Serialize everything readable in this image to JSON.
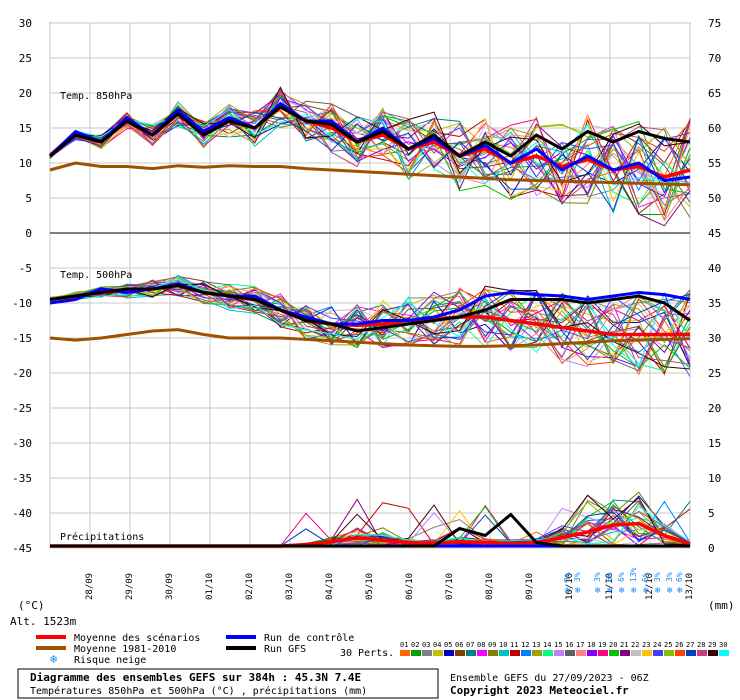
{
  "chart_data": {
    "type": "line",
    "title": "Diagramme des ensembles GEFS sur 384h : 45.3N 7.4E",
    "subtitle": "Températures 850hPa et 500hPa (°C) , précipitations (mm)",
    "ensemble_info": "Ensemble GEFS du 27/09/2023 - 06Z",
    "copyright": "Copyright 2023 Meteociel.fr",
    "altitude": "Alt. 1523m",
    "left_unit": "(°C)",
    "right_unit": "(mm)",
    "left_ticks": [
      "30",
      "25",
      "20",
      "15",
      "10",
      "5",
      "0",
      "-5",
      "-10",
      "-15",
      "-20",
      "-25",
      "-30",
      "-35",
      "-40",
      "-45"
    ],
    "right_ticks": [
      "75",
      "70",
      "65",
      "60",
      "55",
      "50",
      "45",
      "40",
      "35",
      "30",
      "25",
      "20",
      "15",
      "10",
      "5",
      "0"
    ],
    "x_labels": [
      "28/09",
      "29/09",
      "30/09",
      "01/10",
      "02/10",
      "03/10",
      "04/10",
      "05/10",
      "06/10",
      "07/10",
      "08/10",
      "09/10",
      "10/10",
      "11/10",
      "12/10",
      "13/10"
    ],
    "panel_labels": {
      "t850": "Temp. 850hPa",
      "t500": "Temp. 500hPa",
      "precip": "Précipitations"
    },
    "snow_risk": [
      "3%",
      "3%",
      "3%",
      "6%",
      "6%",
      "13%",
      "6%",
      "3%",
      "3%",
      "6%"
    ],
    "legend": {
      "mean": "Moyenne des scénarios",
      "clim": "Moyenne 1981-2010",
      "snow": "Risque neige",
      "control": "Run de contrôle",
      "gfs": "Run GFS",
      "perts": "30 Perts."
    },
    "pert_numbers": [
      "01",
      "02",
      "03",
      "04",
      "05",
      "06",
      "07",
      "08",
      "09",
      "10",
      "11",
      "12",
      "13",
      "14",
      "15",
      "16",
      "17",
      "18",
      "19",
      "20",
      "21",
      "22",
      "23",
      "24",
      "25",
      "26",
      "27",
      "28",
      "29",
      "30"
    ],
    "pert_colors": [
      "#ff6600",
      "#00a000",
      "#808080",
      "#c0c000",
      "#0000c0",
      "#804000",
      "#008080",
      "#ff00ff",
      "#808000",
      "#00c0c0",
      "#c00000",
      "#0080ff",
      "#a0a000",
      "#00ff80",
      "#c080ff",
      "#606060",
      "#ff8080",
      "#8000ff",
      "#ff0080",
      "#00c000",
      "#800080",
      "#c0c0c0",
      "#ffc000",
      "#4040ff",
      "#80c000",
      "#ff4000",
      "#0040c0",
      "#c04080",
      "#400000",
      "#00ffff"
    ],
    "colors": {
      "mean": "#ff0000",
      "clim": "#a05000",
      "control": "#0000ff",
      "gfs": "#000000",
      "snow": "#1a8cff",
      "grid": "#c8c8c8"
    },
    "series": [
      {
        "name": "Moyenne des scénarios",
        "t850": [
          11,
          14,
          13,
          16,
          14,
          17,
          14,
          16,
          15,
          18,
          16,
          15,
          13,
          14,
          12,
          13,
          11,
          12,
          10,
          11,
          9.5,
          10.5,
          9,
          9.5,
          8,
          9
        ],
        "t500": [
          -9.5,
          -9,
          -8.5,
          -8.3,
          -8,
          -7.5,
          -8.5,
          -9,
          -9.5,
          -11,
          -12.5,
          -13,
          -13.2,
          -13,
          -12.5,
          -12.3,
          -12,
          -12,
          -12.5,
          -13,
          -13.5,
          -14,
          -14.5,
          -14.5,
          -14.5,
          -14.5
        ],
        "precip": [
          0,
          0,
          0,
          0,
          0,
          0,
          0,
          0,
          0,
          0,
          0.2,
          0.6,
          1.2,
          0.8,
          0.5,
          0.4,
          0.6,
          0.5,
          0.4,
          0.5,
          1.2,
          2.0,
          3.0,
          3.2,
          1.5,
          0.3
        ]
      },
      {
        "name": "Moyenne 1981-2010",
        "t850": [
          9,
          10,
          9.5,
          9.5,
          9.2,
          9.6,
          9.4,
          9.6,
          9.5,
          9.5,
          9.2,
          9,
          8.8,
          8.6,
          8.4,
          8.2,
          8,
          7.8,
          7.6,
          7.5,
          7.4,
          7.3,
          7.2,
          7.1,
          7,
          6.9
        ],
        "t500": [
          -15,
          -15.3,
          -15,
          -14.5,
          -14,
          -13.8,
          -14.5,
          -15,
          -15,
          -15,
          -15.2,
          -15.4,
          -15.6,
          -15.8,
          -16,
          -16.1,
          -16.2,
          -16.2,
          -16.1,
          -16,
          -15.8,
          -15.6,
          -15.4,
          -15.3,
          -15.2,
          -15.1
        ],
        "precip": [
          0,
          0,
          0,
          0,
          0,
          0,
          0,
          0,
          0,
          0,
          0,
          0,
          0,
          0,
          0,
          0,
          0,
          0,
          0,
          0,
          0,
          0,
          0,
          0,
          0,
          0
        ]
      },
      {
        "name": "Run de contrôle",
        "t850": [
          11,
          14.5,
          13,
          16.5,
          14,
          17.5,
          14.5,
          16.5,
          15,
          18.5,
          16,
          16,
          13,
          15,
          12,
          13.5,
          11,
          12.5,
          10,
          12,
          9,
          11,
          9,
          10,
          7.5,
          8
        ],
        "t500": [
          -10,
          -9.5,
          -8,
          -8.5,
          -8,
          -7.3,
          -8.5,
          -9,
          -9,
          -11,
          -12,
          -13,
          -13,
          -12.5,
          -12.5,
          -12,
          -11,
          -9,
          -8.5,
          -8.8,
          -9,
          -9.5,
          -9,
          -8.5,
          -8.8,
          -9.5
        ],
        "precip": [
          0,
          0,
          0,
          0,
          0,
          0,
          0,
          0,
          0,
          0,
          0,
          0,
          0,
          0,
          0,
          0,
          0,
          0,
          0,
          0,
          0,
          0,
          0,
          0,
          0,
          0
        ]
      },
      {
        "name": "Run GFS",
        "t850": [
          11,
          14,
          13,
          16,
          14,
          17,
          14,
          16,
          15,
          18,
          16,
          15.5,
          13,
          14.5,
          12,
          14,
          11,
          13,
          11,
          14,
          12,
          14.5,
          13,
          14.5,
          13.5,
          13
        ],
        "t500": [
          -9.5,
          -9,
          -8.5,
          -8,
          -8,
          -7.5,
          -8.5,
          -9,
          -9.5,
          -11,
          -12.5,
          -13,
          -14,
          -13.5,
          -13,
          -12.5,
          -12,
          -11,
          -9.5,
          -9.5,
          -9.5,
          -10,
          -9.5,
          -9,
          -10,
          -12.5
        ],
        "precip": [
          0,
          0,
          0,
          0,
          0,
          0,
          0,
          0,
          0,
          0,
          0,
          0,
          0,
          0,
          0,
          0,
          2.5,
          1.5,
          4.5,
          0.5,
          0,
          0,
          0,
          0,
          0,
          0
        ]
      }
    ]
  }
}
